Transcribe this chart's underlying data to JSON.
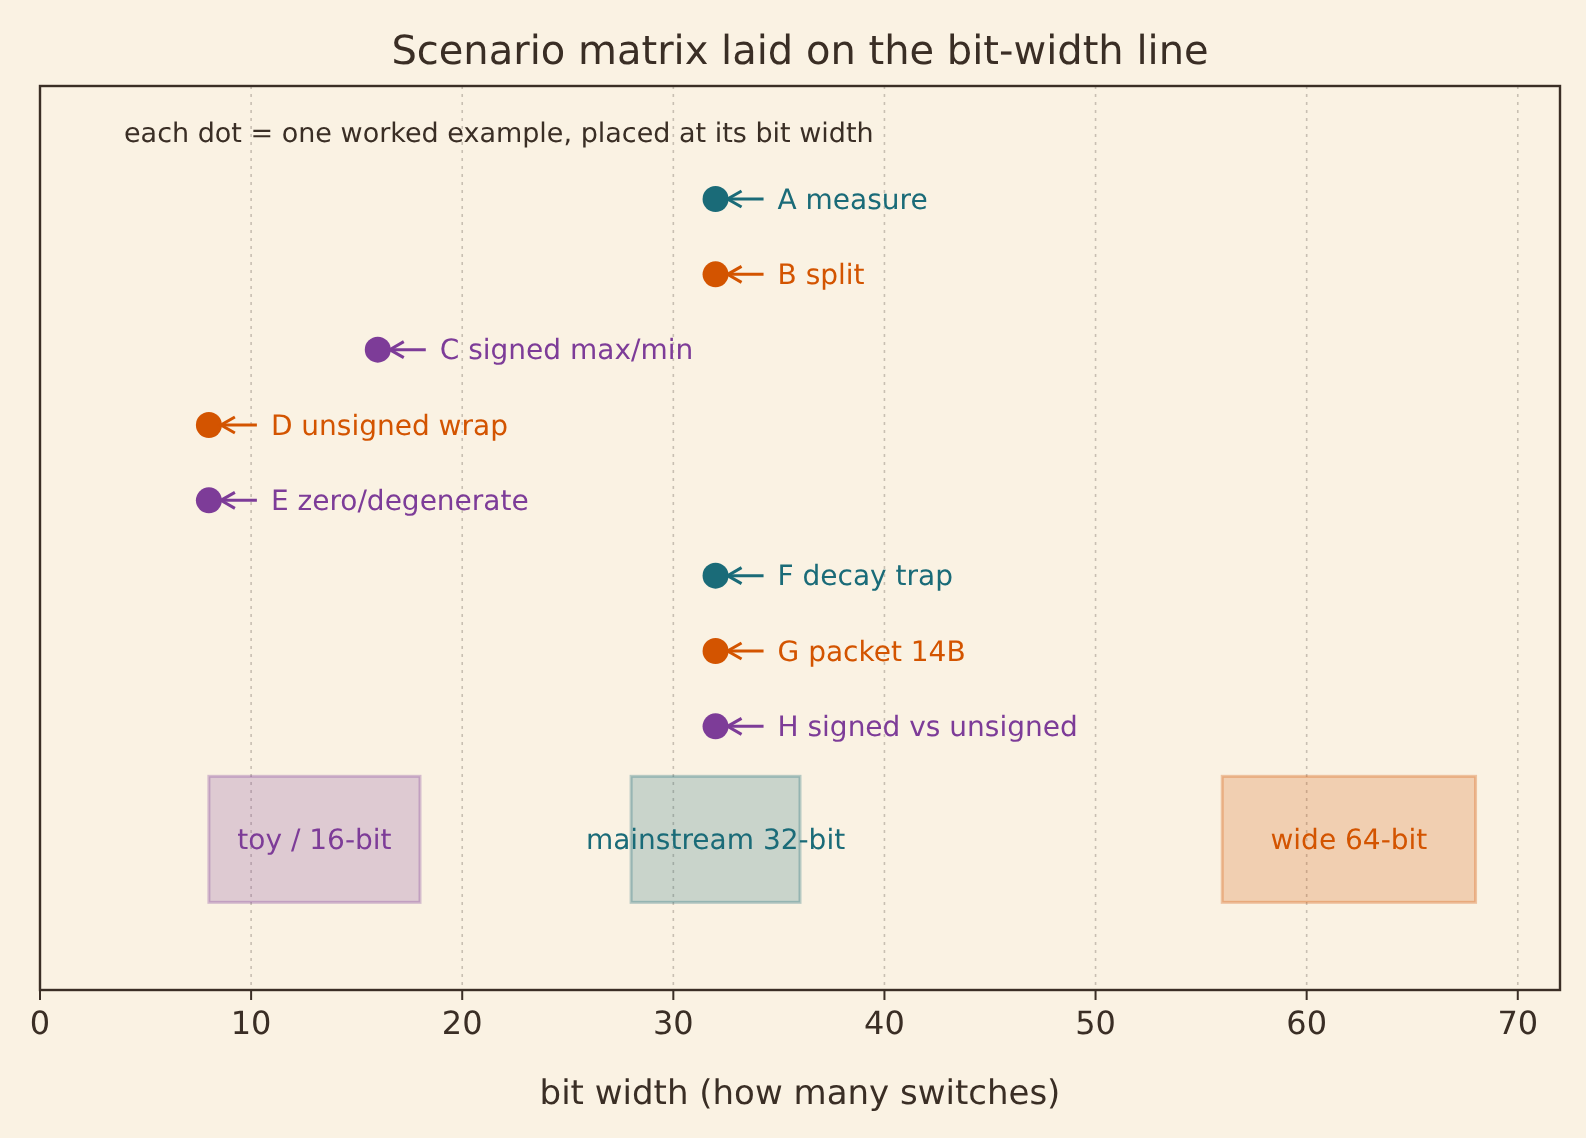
{
  "chart_data": {
    "type": "scatter",
    "orientation": "horizontal",
    "title": "Scenario matrix laid on the bit-width line",
    "xlabel": "bit width (how many switches)",
    "categories": [
      null,
      null,
      null,
      null,
      null,
      null,
      null,
      null,
      null,
      null,
      null,
      null
    ],
    "series": [
      {
        "name": "A measure",
        "color": "#1a6b78",
        "values": [
          null,
          32,
          null,
          null,
          null,
          null,
          null,
          null,
          null,
          null,
          null,
          null
        ]
      },
      {
        "name": "B split",
        "color": "#d35400",
        "values": [
          null,
          null,
          32,
          null,
          null,
          null,
          null,
          null,
          null,
          null,
          null,
          null
        ]
      },
      {
        "name": "C signed max/min",
        "color": "#7d3c98",
        "values": [
          null,
          null,
          null,
          16,
          null,
          null,
          null,
          null,
          null,
          null,
          null,
          null
        ]
      },
      {
        "name": "D unsigned wrap",
        "color": "#d35400",
        "values": [
          null,
          null,
          null,
          null,
          8,
          null,
          null,
          null,
          null,
          null,
          null,
          null
        ]
      },
      {
        "name": "E zero/degenerate",
        "color": "#7d3c98",
        "values": [
          null,
          null,
          null,
          null,
          null,
          8,
          null,
          null,
          null,
          null,
          null,
          null
        ]
      },
      {
        "name": "F decay trap",
        "color": "#1a6b78",
        "values": [
          null,
          null,
          null,
          null,
          null,
          null,
          32,
          null,
          null,
          null,
          null,
          null
        ]
      },
      {
        "name": "G packet 14B",
        "color": "#d35400",
        "values": [
          null,
          null,
          null,
          null,
          null,
          null,
          null,
          32,
          null,
          null,
          null,
          null
        ]
      },
      {
        "name": "H signed vs unsigned",
        "color": "#7d3c98",
        "values": [
          null,
          null,
          null,
          null,
          null,
          null,
          null,
          null,
          32,
          null,
          null,
          null
        ]
      }
    ],
    "xlim": [
      0,
      72
    ],
    "xticks": [
      0,
      10,
      20,
      30,
      40,
      50,
      60,
      70
    ],
    "grid": "x",
    "marker": "circle",
    "legend": "top left",
    "annotations": [
      "each dot = one worked example, placed at its bit width"
    ],
    "bands": [
      {
        "axis": "x",
        "from": 8,
        "to": 18,
        "label": "toy / 16-bit",
        "color": "#7d3c98"
      },
      {
        "axis": "x",
        "from": 28,
        "to": 36,
        "label": "mainstream 32-bit",
        "color": "#1a6b78"
      },
      {
        "axis": "x",
        "from": 56,
        "to": 68,
        "label": "wide 64-bit",
        "color": "#d35400"
      }
    ]
  }
}
